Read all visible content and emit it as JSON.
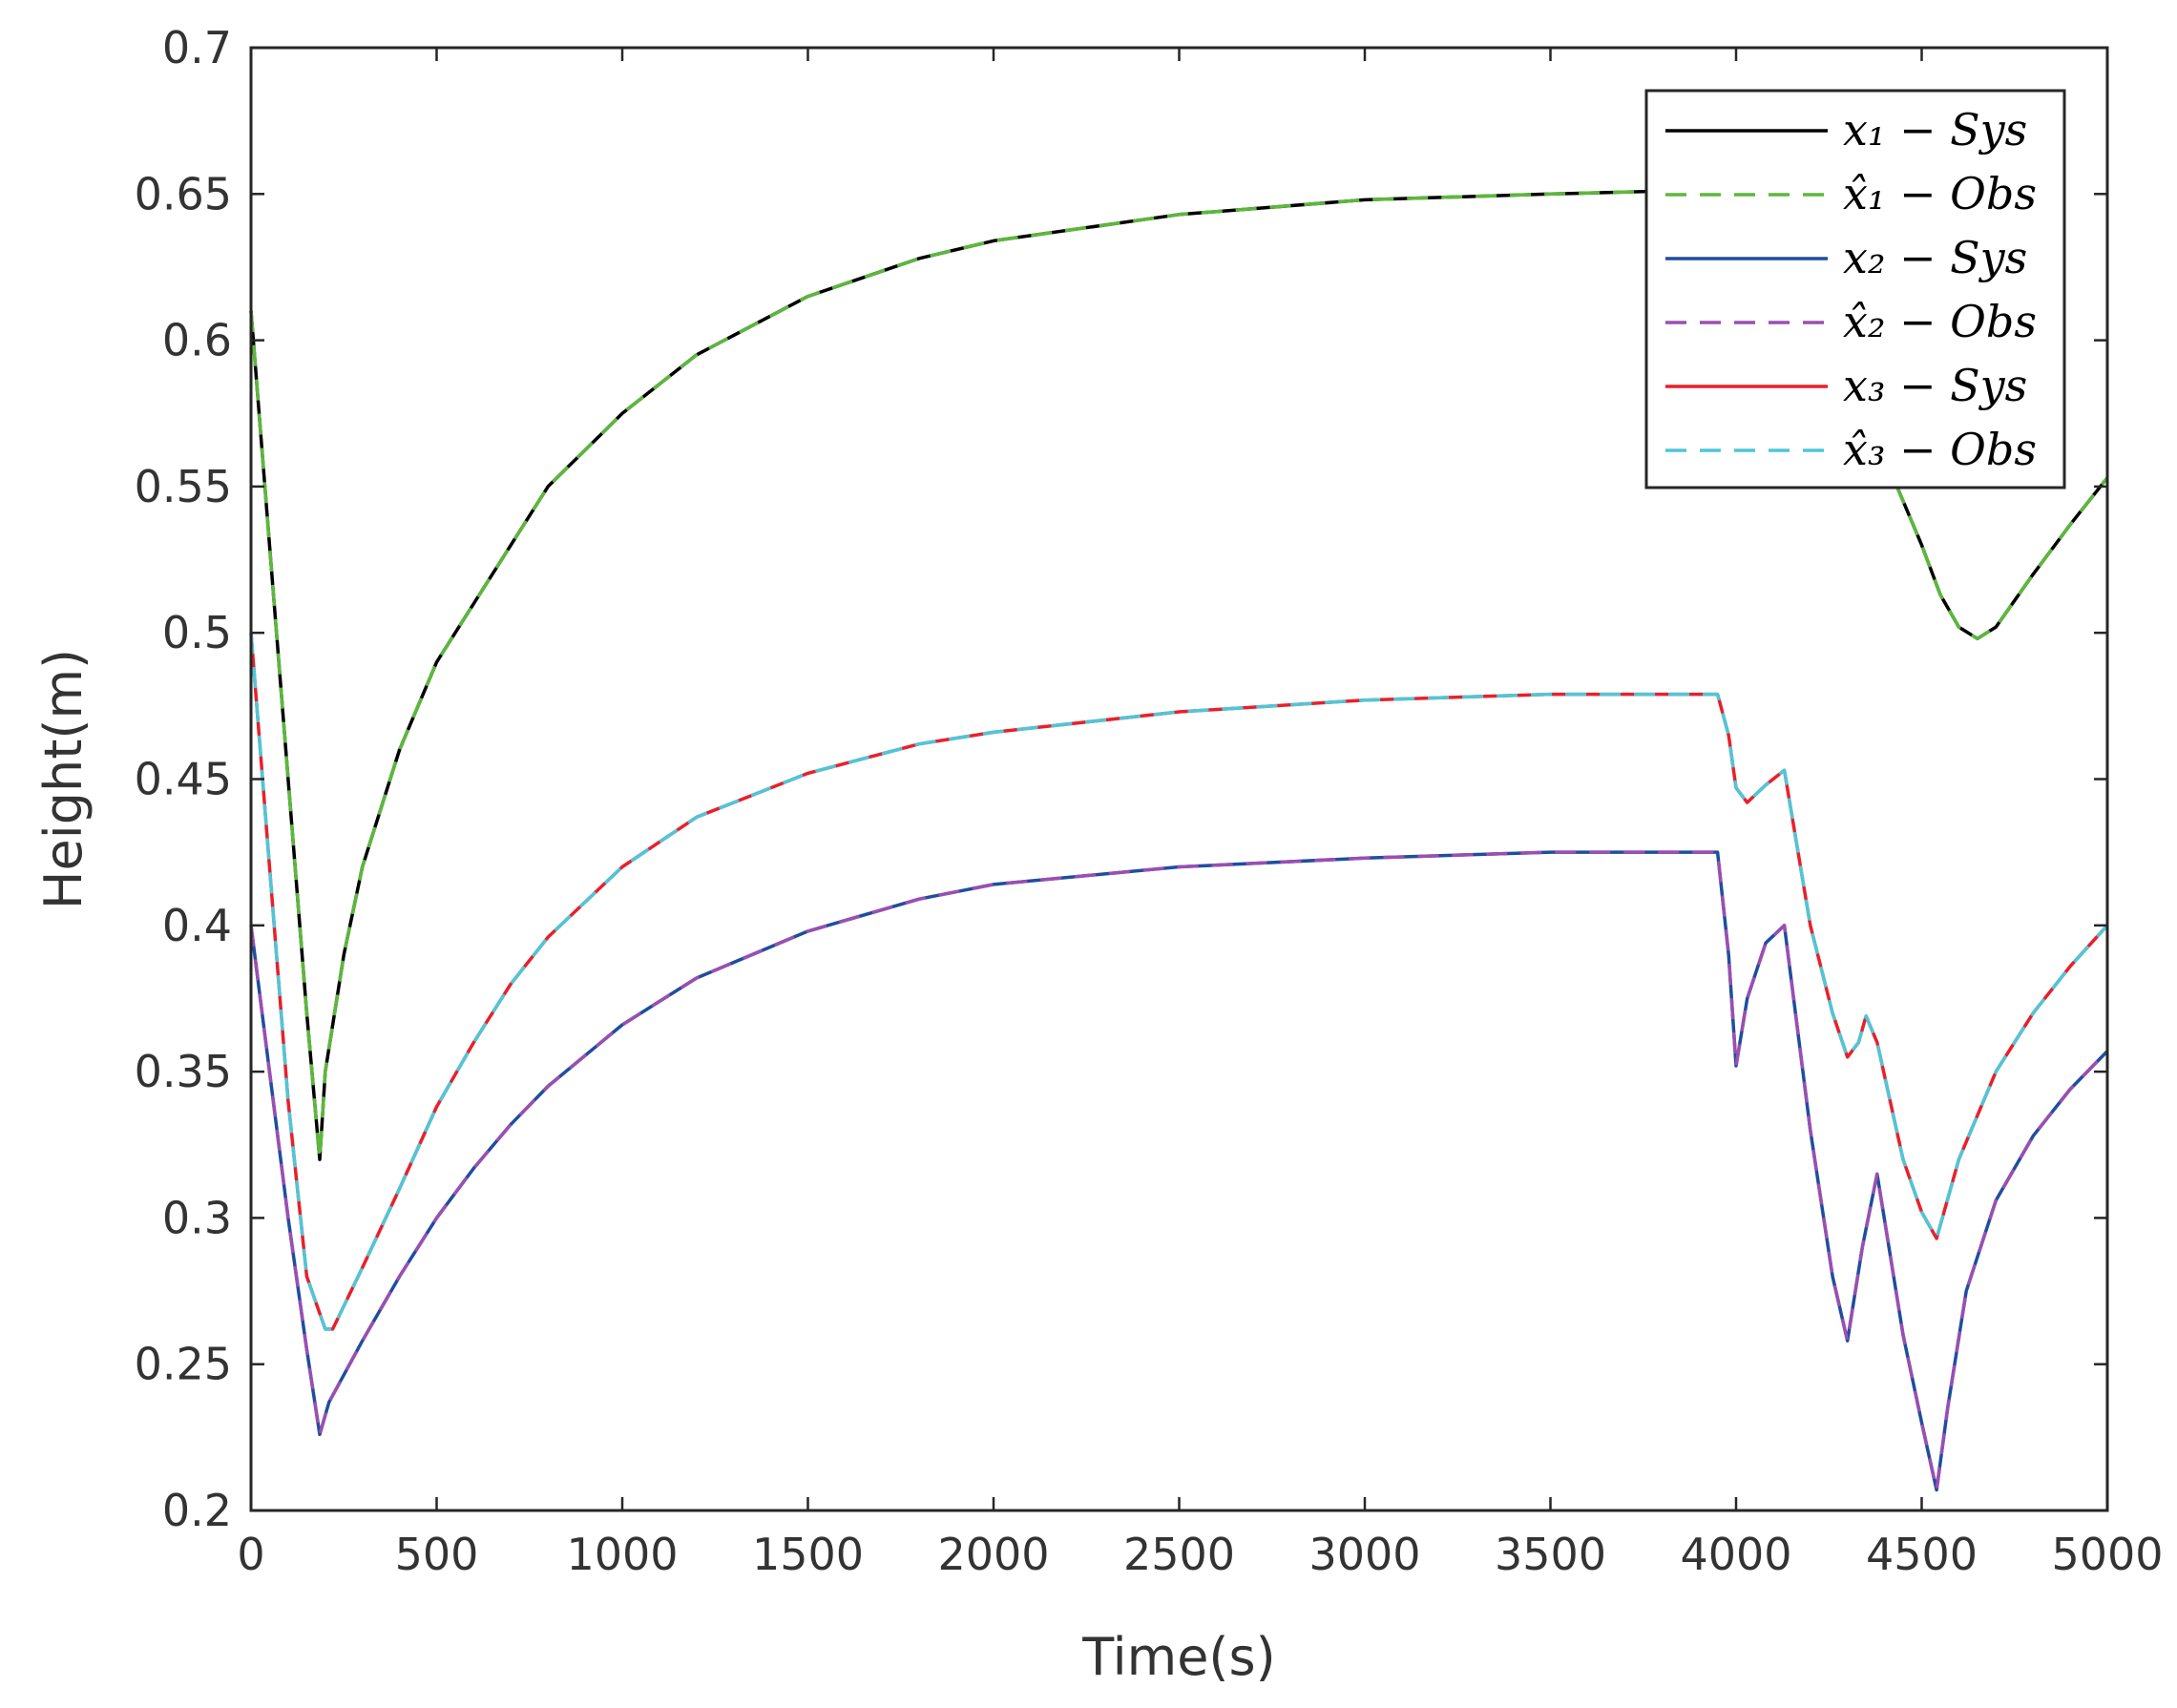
{
  "chart_data": {
    "type": "line",
    "title": "",
    "xlabel": "Time(s)",
    "ylabel": "Height(m)",
    "xlim": [
      0,
      5000
    ],
    "ylim": [
      0.2,
      0.7
    ],
    "xticks": [
      "0",
      "500",
      "1000",
      "1500",
      "2000",
      "2500",
      "3000",
      "3500",
      "4000",
      "4500",
      "5000"
    ],
    "yticks": [
      "0.2",
      "0.25",
      "0.3",
      "0.35",
      "0.4",
      "0.45",
      "0.5",
      "0.55",
      "0.6",
      "0.65",
      "0.7"
    ],
    "grid": false,
    "legend_position": "top-right",
    "series": [
      {
        "name": "x₁ − Sys",
        "color": "#000000",
        "dash": "solid",
        "x": [
          0,
          50,
          100,
          150,
          185,
          200,
          250,
          300,
          400,
          500,
          600,
          700,
          800,
          1000,
          1200,
          1500,
          1800,
          2000,
          2500,
          3000,
          3500,
          3800,
          4000,
          4100,
          4200,
          4300,
          4400,
          4500,
          4550,
          4600,
          4650,
          4700,
          4800,
          4900,
          5000
        ],
        "y": [
          0.61,
          0.53,
          0.45,
          0.37,
          0.32,
          0.35,
          0.39,
          0.42,
          0.46,
          0.49,
          0.51,
          0.53,
          0.55,
          0.575,
          0.595,
          0.615,
          0.628,
          0.634,
          0.643,
          0.648,
          0.65,
          0.651,
          0.646,
          0.63,
          0.61,
          0.585,
          0.56,
          0.53,
          0.513,
          0.502,
          0.498,
          0.502,
          0.52,
          0.537,
          0.553
        ]
      },
      {
        "name": "x̂₁ − Obs",
        "color": "#5cb83c",
        "dash": "dashed",
        "x": [
          0,
          50,
          100,
          150,
          185,
          200,
          250,
          300,
          400,
          500,
          600,
          700,
          800,
          1000,
          1200,
          1500,
          1800,
          2000,
          2500,
          3000,
          3500,
          3800,
          4000,
          4100,
          4200,
          4300,
          4400,
          4500,
          4550,
          4600,
          4650,
          4700,
          4800,
          4900,
          5000
        ],
        "y": [
          0.61,
          0.53,
          0.45,
          0.37,
          0.32,
          0.35,
          0.39,
          0.42,
          0.46,
          0.49,
          0.51,
          0.53,
          0.55,
          0.575,
          0.595,
          0.615,
          0.628,
          0.634,
          0.643,
          0.648,
          0.65,
          0.651,
          0.646,
          0.63,
          0.61,
          0.585,
          0.56,
          0.53,
          0.513,
          0.502,
          0.498,
          0.502,
          0.52,
          0.537,
          0.553
        ]
      },
      {
        "name": "x₂ − Sys",
        "color": "#1f4e9e",
        "dash": "solid",
        "x": [
          0,
          50,
          100,
          150,
          185,
          210,
          300,
          400,
          500,
          600,
          700,
          800,
          1000,
          1200,
          1500,
          1800,
          2000,
          2500,
          3000,
          3500,
          3950,
          3980,
          4000,
          4030,
          4080,
          4130,
          4200,
          4260,
          4300,
          4340,
          4380,
          4450,
          4500,
          4540,
          4570,
          4620,
          4700,
          4800,
          4900,
          5000
        ],
        "y": [
          0.4,
          0.35,
          0.3,
          0.255,
          0.226,
          0.237,
          0.258,
          0.28,
          0.3,
          0.317,
          0.332,
          0.345,
          0.366,
          0.382,
          0.398,
          0.409,
          0.414,
          0.42,
          0.423,
          0.425,
          0.425,
          0.39,
          0.352,
          0.375,
          0.394,
          0.4,
          0.33,
          0.28,
          0.258,
          0.29,
          0.315,
          0.26,
          0.23,
          0.207,
          0.235,
          0.275,
          0.306,
          0.328,
          0.344,
          0.357
        ]
      },
      {
        "name": "x̂₂ − Obs",
        "color": "#9b4fb0",
        "dash": "dashed",
        "x": [
          0,
          50,
          100,
          150,
          185,
          210,
          300,
          400,
          500,
          600,
          700,
          800,
          1000,
          1200,
          1500,
          1800,
          2000,
          2500,
          3000,
          3500,
          3950,
          3980,
          4000,
          4030,
          4080,
          4130,
          4200,
          4260,
          4300,
          4340,
          4380,
          4450,
          4500,
          4540,
          4570,
          4620,
          4700,
          4800,
          4900,
          5000
        ],
        "y": [
          0.4,
          0.35,
          0.3,
          0.255,
          0.226,
          0.237,
          0.258,
          0.28,
          0.3,
          0.317,
          0.332,
          0.345,
          0.366,
          0.382,
          0.398,
          0.409,
          0.414,
          0.42,
          0.423,
          0.425,
          0.425,
          0.39,
          0.352,
          0.375,
          0.394,
          0.4,
          0.33,
          0.28,
          0.258,
          0.29,
          0.315,
          0.26,
          0.23,
          0.207,
          0.235,
          0.275,
          0.306,
          0.328,
          0.344,
          0.357
        ]
      },
      {
        "name": "x₃ − Sys",
        "color": "#e8202a",
        "dash": "solid",
        "x": [
          0,
          50,
          100,
          150,
          200,
          220,
          300,
          400,
          500,
          600,
          700,
          800,
          1000,
          1200,
          1500,
          1800,
          2000,
          2500,
          3000,
          3500,
          3950,
          3980,
          4000,
          4030,
          4080,
          4130,
          4200,
          4260,
          4300,
          4330,
          4350,
          4380,
          4450,
          4500,
          4540,
          4600,
          4700,
          4800,
          4900,
          5000
        ],
        "y": [
          0.5,
          0.42,
          0.34,
          0.28,
          0.262,
          0.262,
          0.283,
          0.31,
          0.338,
          0.36,
          0.38,
          0.396,
          0.42,
          0.437,
          0.452,
          0.462,
          0.466,
          0.473,
          0.477,
          0.479,
          0.479,
          0.465,
          0.447,
          0.442,
          0.448,
          0.453,
          0.4,
          0.37,
          0.355,
          0.36,
          0.369,
          0.36,
          0.32,
          0.302,
          0.293,
          0.32,
          0.35,
          0.37,
          0.386,
          0.4
        ]
      },
      {
        "name": "x̂₃ − Obs",
        "color": "#4fc6d8",
        "dash": "dashed",
        "x": [
          0,
          50,
          100,
          150,
          200,
          220,
          300,
          400,
          500,
          600,
          700,
          800,
          1000,
          1200,
          1500,
          1800,
          2000,
          2500,
          3000,
          3500,
          3950,
          3980,
          4000,
          4030,
          4080,
          4130,
          4200,
          4260,
          4300,
          4330,
          4350,
          4380,
          4450,
          4500,
          4540,
          4600,
          4700,
          4800,
          4900,
          5000
        ],
        "y": [
          0.5,
          0.42,
          0.34,
          0.28,
          0.262,
          0.262,
          0.283,
          0.31,
          0.338,
          0.36,
          0.38,
          0.396,
          0.42,
          0.437,
          0.452,
          0.462,
          0.466,
          0.473,
          0.477,
          0.479,
          0.479,
          0.465,
          0.447,
          0.442,
          0.448,
          0.453,
          0.4,
          0.37,
          0.355,
          0.36,
          0.369,
          0.36,
          0.32,
          0.302,
          0.293,
          0.32,
          0.35,
          0.37,
          0.386,
          0.4
        ]
      }
    ]
  }
}
